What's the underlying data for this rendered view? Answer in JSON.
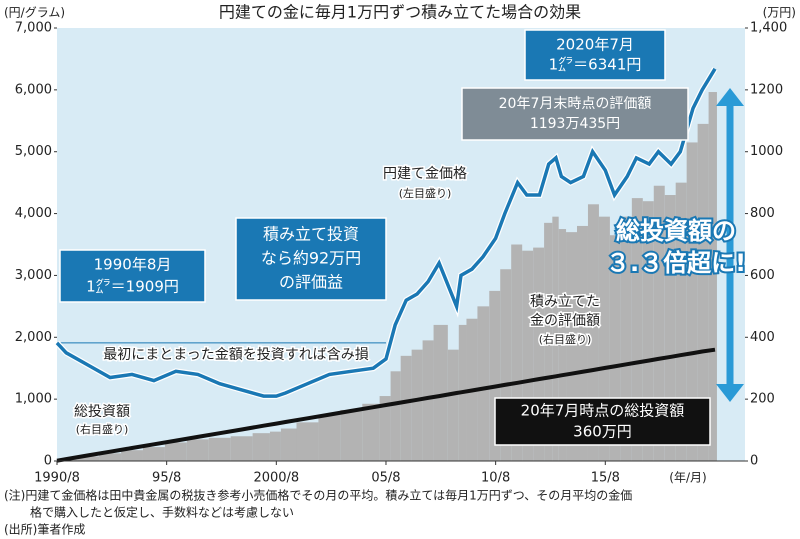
{
  "chart_data": {
    "type": "combo",
    "title": "円建ての金に毎月1万円ずつ積み立てた場合の効果",
    "y_label": "(円/グラム)",
    "y2_label": "(万円)",
    "x_label": "(年/月)",
    "x": [
      1990.58,
      1991,
      1992,
      1993,
      1994,
      1995,
      1996,
      1997,
      1998,
      1999,
      2000,
      2000.58,
      2001,
      2002,
      2003,
      2004,
      2005,
      2005.58,
      2006,
      2006.5,
      2007,
      2007.5,
      2008,
      2008.8,
      2009,
      2009.5,
      2010,
      2010.58,
      2011,
      2011.58,
      2012,
      2012.58,
      2013,
      2013.33,
      2013.58,
      2014,
      2014.58,
      2015,
      2015.58,
      2016,
      2016.58,
      2017,
      2017.58,
      2018,
      2018.58,
      2019,
      2019.58,
      2020,
      2020.58
    ],
    "series": [
      {
        "name": "円建て金価格",
        "kind": "line",
        "color": "#1a78b4",
        "axis": "y",
        "values": [
          1909,
          1750,
          1550,
          1350,
          1400,
          1300,
          1450,
          1400,
          1250,
          1150,
          1050,
          1050,
          1100,
          1250,
          1400,
          1450,
          1500,
          1650,
          2200,
          2600,
          2700,
          2900,
          3200,
          2500,
          3000,
          3100,
          3300,
          3600,
          4000,
          4500,
          4300,
          4300,
          4800,
          4900,
          4600,
          4500,
          4600,
          5000,
          4700,
          4300,
          4600,
          4900,
          4800,
          5000,
          4800,
          5000,
          5700,
          6000,
          6341
        ]
      },
      {
        "name": "積み立てた金の評価額",
        "kind": "bar",
        "color": "#b3b3b3",
        "axis": "y2",
        "values": [
          1,
          5,
          15,
          25,
          35,
          45,
          60,
          70,
          75,
          80,
          90,
          95,
          105,
          125,
          150,
          165,
          185,
          210,
          290,
          340,
          360,
          390,
          440,
          360,
          440,
          460,
          500,
          550,
          620,
          700,
          680,
          690,
          770,
          790,
          750,
          740,
          760,
          830,
          790,
          730,
          790,
          850,
          840,
          890,
          860,
          900,
          1030,
          1090,
          1193
        ]
      },
      {
        "name": "総投資額",
        "kind": "line",
        "color": "#111111",
        "axis": "y2",
        "values": [
          1,
          6,
          18,
          30,
          42,
          54,
          66,
          78,
          90,
          102,
          114,
          121,
          126,
          138,
          150,
          162,
          174,
          181,
          186,
          192,
          198,
          204,
          210,
          220,
          222,
          228,
          234,
          241,
          246,
          253,
          258,
          265,
          270,
          274,
          277,
          282,
          289,
          294,
          301,
          306,
          313,
          318,
          325,
          330,
          337,
          342,
          349,
          354,
          360
        ]
      }
    ],
    "xlim": [
      1990.58,
      2021.95
    ],
    "xticks": [
      {
        "value": 1990.58,
        "label": "1990/8"
      },
      {
        "value": 1995.58,
        "label": "95/8"
      },
      {
        "value": 2000.58,
        "label": "2000/8"
      },
      {
        "value": 2005.58,
        "label": "05/8"
      },
      {
        "value": 2010.58,
        "label": "10/8"
      },
      {
        "value": 2015.58,
        "label": "15/8"
      }
    ],
    "ylim": [
      0,
      7000
    ],
    "yticks": [
      0,
      {
        "value": 1000,
        "label": "1,000"
      },
      {
        "value": 2000,
        "label": "2,000"
      },
      {
        "value": 3000,
        "label": "3,000"
      },
      {
        "value": 4000,
        "label": "4,000"
      },
      {
        "value": 5000,
        "label": "5,000"
      },
      {
        "value": 6000,
        "label": "6,000"
      },
      {
        "value": 7000,
        "label": "7,000"
      }
    ],
    "y2lim": [
      0,
      1400
    ],
    "y2ticks": [
      0,
      200,
      400,
      600,
      800,
      1000,
      1200,
      {
        "value": 1400,
        "label": "1,400"
      }
    ],
    "grid": false,
    "annotations": [
      {
        "lines": [
          "2020年7月",
          "1㌘＝6341円"
        ]
      },
      {
        "lines": [
          "20年7月末時点の評価額",
          "1193万435円"
        ]
      },
      {
        "lines": [
          "円建て金価格",
          "(左目盛り)"
        ]
      },
      {
        "lines": [
          "積み立て投資",
          "なら約92万円",
          "の評価益"
        ]
      },
      {
        "lines": [
          "1990年8月",
          "1㌘＝1909円"
        ]
      },
      {
        "lines": [
          "最初にまとまった金額を投資すれば含み損"
        ]
      },
      {
        "lines": [
          "総投資額の",
          "３.３倍超に!"
        ]
      },
      {
        "lines": [
          "積み立てた",
          "金の評価額",
          "(右目盛り)"
        ]
      },
      {
        "lines": [
          "総投資額",
          "(右目盛り)"
        ]
      },
      {
        "lines": [
          "20年7月時点の総投資額",
          "360万円"
        ]
      }
    ],
    "notes": [
      "(注)円建て金価格は田中貴金属の税抜き参考小売価格でその月の平均。積み立ては毎月1万円ずつ、その月平均の金価",
      "格で購入したと仮定し、手数料などは考慮しない",
      "(出所)筆者作成"
    ]
  }
}
